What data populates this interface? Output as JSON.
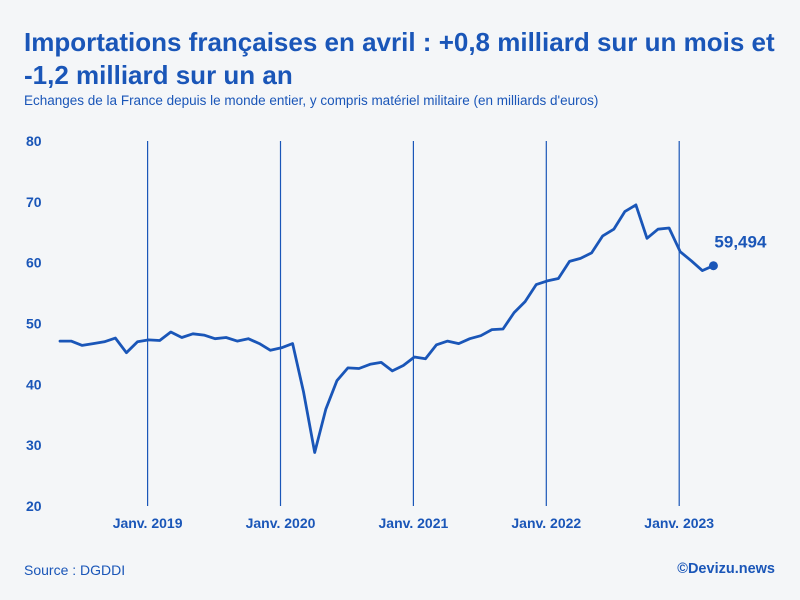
{
  "title": "Importations françaises en avril : +0,8 milliard sur un mois et -1,2 milliard sur un an",
  "subtitle": "Echanges de la France depuis le monde entier, y compris matériel militaire (en milliards d'euros)",
  "source": "Source : DGDDI",
  "credit": "©Devizu.news",
  "colors": {
    "accent": "#1a56b8",
    "background": "#f4f6f8"
  },
  "chart_data": {
    "type": "line",
    "title": "Importations françaises en avril : +0,8 milliard sur un mois et -1,2 milliard sur un an",
    "ylabel": "milliards d'euros",
    "xlabel": "",
    "ylim": [
      20,
      80
    ],
    "yticks": [
      20,
      30,
      40,
      50,
      60,
      70,
      80
    ],
    "x_start": "2018-05",
    "xticks": [
      {
        "label": "Janv. 2019",
        "index": 8
      },
      {
        "label": "Janv. 2020",
        "index": 20
      },
      {
        "label": "Janv. 2021",
        "index": 32
      },
      {
        "label": "Janv. 2022",
        "index": 44
      },
      {
        "label": "Janv. 2023",
        "index": 56
      }
    ],
    "series": [
      {
        "name": "Importations",
        "values": [
          47.1,
          47.1,
          46.4,
          46.7,
          47.0,
          47.6,
          45.2,
          47.0,
          47.3,
          47.2,
          48.6,
          47.7,
          48.3,
          48.1,
          47.5,
          47.7,
          47.1,
          47.5,
          46.7,
          45.6,
          46.0,
          46.7,
          38.7,
          28.8,
          35.9,
          40.6,
          42.7,
          42.6,
          43.3,
          43.6,
          42.2,
          43.1,
          44.5,
          44.2,
          46.5,
          47.1,
          46.7,
          47.5,
          48.0,
          49.0,
          49.1,
          51.8,
          53.6,
          56.4,
          57.0,
          57.4,
          60.2,
          60.7,
          61.6,
          64.4,
          65.5,
          68.4,
          69.5,
          64.0,
          65.5,
          65.7,
          61.8,
          60.3,
          58.7,
          59.494
        ]
      }
    ],
    "last_value_label": "59,494"
  }
}
